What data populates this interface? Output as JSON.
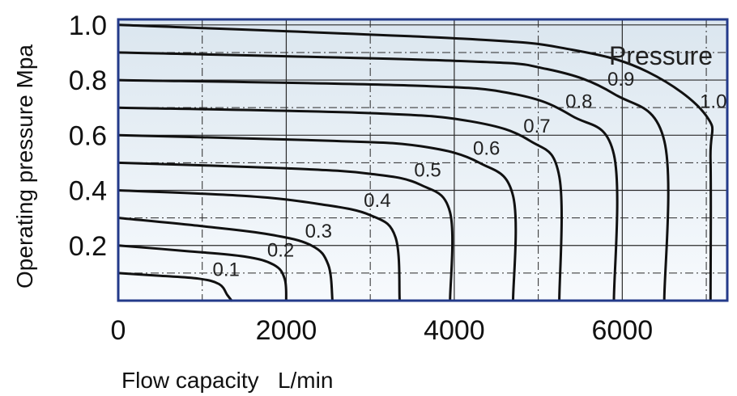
{
  "chart_data": {
    "type": "line",
    "ylabel": "Operating pressure  Mpa",
    "xlabel": "Flow capacity   L/min",
    "legend_title": "Pressure",
    "xlim": [
      0,
      7250
    ],
    "ylim": [
      0,
      1.02
    ],
    "xticks": [
      0,
      2000,
      4000,
      6000
    ],
    "xtick_labels": [
      "0",
      "2000",
      "4000",
      "6000"
    ],
    "yticks": [
      0.2,
      0.4,
      0.6,
      0.8,
      1.0
    ],
    "ytick_labels": [
      "0.2",
      "0.4",
      "0.6",
      "0.8",
      "1.0"
    ],
    "grid": true,
    "series": [
      {
        "name": "0.1",
        "points": [
          [
            0,
            0.1
          ],
          [
            500,
            0.09
          ],
          [
            950,
            0.08
          ],
          [
            1200,
            0.06
          ],
          [
            1300,
            0.02
          ],
          [
            1350,
            0.0
          ]
        ]
      },
      {
        "name": "0.2",
        "points": [
          [
            0,
            0.2
          ],
          [
            800,
            0.18
          ],
          [
            1500,
            0.16
          ],
          [
            1850,
            0.13
          ],
          [
            1980,
            0.08
          ],
          [
            2000,
            0.0
          ]
        ]
      },
      {
        "name": "0.3",
        "points": [
          [
            0,
            0.3
          ],
          [
            1000,
            0.27
          ],
          [
            1800,
            0.24
          ],
          [
            2300,
            0.2
          ],
          [
            2500,
            0.13
          ],
          [
            2550,
            0.0
          ]
        ]
      },
      {
        "name": "0.4",
        "points": [
          [
            0,
            0.4
          ],
          [
            1500,
            0.38
          ],
          [
            2400,
            0.35
          ],
          [
            3000,
            0.31
          ],
          [
            3300,
            0.23
          ],
          [
            3350,
            0.0
          ]
        ]
      },
      {
        "name": "0.5",
        "points": [
          [
            0,
            0.5
          ],
          [
            2000,
            0.48
          ],
          [
            3000,
            0.46
          ],
          [
            3600,
            0.42
          ],
          [
            3950,
            0.32
          ],
          [
            3950,
            0.0
          ]
        ]
      },
      {
        "name": "0.6",
        "points": [
          [
            0,
            0.6
          ],
          [
            2500,
            0.58
          ],
          [
            3600,
            0.56
          ],
          [
            4300,
            0.5
          ],
          [
            4700,
            0.38
          ],
          [
            4700,
            0.0
          ]
        ]
      },
      {
        "name": "0.7",
        "points": [
          [
            0,
            0.7
          ],
          [
            3000,
            0.68
          ],
          [
            4200,
            0.65
          ],
          [
            4900,
            0.58
          ],
          [
            5250,
            0.45
          ],
          [
            5250,
            0.0
          ]
        ]
      },
      {
        "name": "0.8",
        "points": [
          [
            0,
            0.8
          ],
          [
            3500,
            0.78
          ],
          [
            4700,
            0.75
          ],
          [
            5400,
            0.67
          ],
          [
            5900,
            0.53
          ],
          [
            5900,
            0.0
          ]
        ]
      },
      {
        "name": "0.9",
        "points": [
          [
            0,
            0.9
          ],
          [
            4000,
            0.87
          ],
          [
            5100,
            0.84
          ],
          [
            5900,
            0.75
          ],
          [
            6500,
            0.58
          ],
          [
            6500,
            0.0
          ]
        ]
      },
      {
        "name": "1.0",
        "points": [
          [
            0,
            1.0
          ],
          [
            4100,
            0.95
          ],
          [
            5400,
            0.91
          ],
          [
            6300,
            0.83
          ],
          [
            7000,
            0.67
          ],
          [
            7050,
            0.51
          ],
          [
            7050,
            0.0
          ]
        ]
      }
    ]
  }
}
